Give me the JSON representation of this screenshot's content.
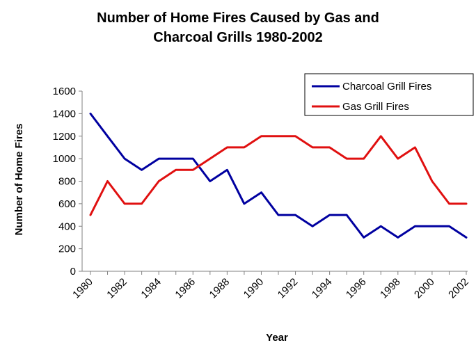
{
  "chart_data": {
    "type": "line",
    "title_line1": "Number of Home Fires Caused by Gas and",
    "title_line2": "Charcoal Grills 1980-2002",
    "xlabel": "Year",
    "ylabel": "Number of Home Fires",
    "ylim": [
      0,
      1600
    ],
    "yticks": [
      "0",
      "200",
      "400",
      "600",
      "800",
      "1000",
      "1200",
      "1400",
      "1600"
    ],
    "xtick_labels": [
      "1980",
      "1982",
      "1984",
      "1986",
      "1988",
      "1990",
      "1992",
      "1994",
      "1996",
      "1998",
      "2000",
      "2002"
    ],
    "x": [
      1980,
      1981,
      1982,
      1983,
      1984,
      1985,
      1986,
      1987,
      1988,
      1989,
      1990,
      1991,
      1992,
      1993,
      1994,
      1995,
      1996,
      1997,
      1998,
      1999,
      2000,
      2001,
      2002
    ],
    "grid": false,
    "legend_position": "top-right",
    "series": [
      {
        "name": "Charcoal Grill Fires",
        "color": "#0000a0",
        "values": [
          1400,
          1200,
          1000,
          900,
          1000,
          1000,
          1000,
          800,
          900,
          600,
          700,
          500,
          500,
          400,
          500,
          500,
          300,
          400,
          300,
          400,
          400,
          400,
          300
        ]
      },
      {
        "name": "Gas Grill Fires",
        "color": "#e01010",
        "values": [
          500,
          800,
          600,
          600,
          800,
          900,
          900,
          1000,
          1100,
          1100,
          1200,
          1200,
          1200,
          1100,
          1100,
          1000,
          1000,
          1200,
          1000,
          1100,
          800,
          600,
          600
        ]
      }
    ]
  }
}
